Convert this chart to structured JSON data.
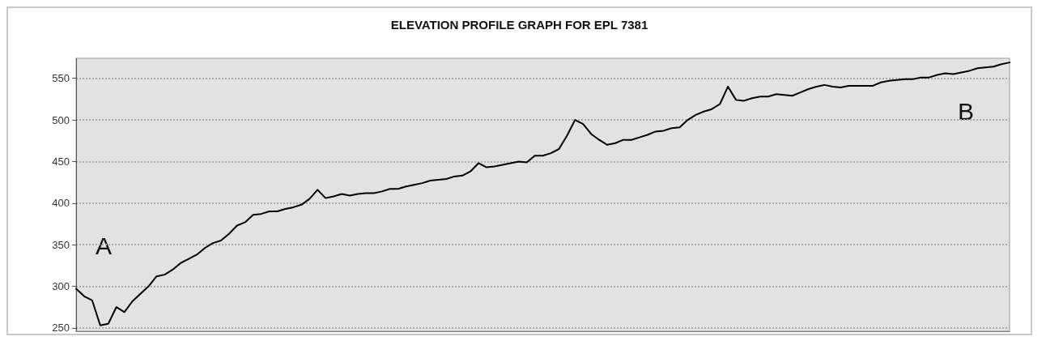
{
  "chart_data": {
    "type": "line",
    "title": "ELEVATION PROFILE GRAPH FOR EPL 7381",
    "categories": [
      null,
      null,
      null,
      null,
      null,
      null,
      null,
      null,
      null,
      null,
      null,
      null,
      null,
      null,
      null,
      null,
      null,
      null,
      null,
      null,
      null,
      null,
      null,
      null,
      null,
      null,
      null,
      null,
      null,
      null,
      null,
      null,
      null,
      null,
      null,
      null,
      null,
      null,
      null,
      null,
      null,
      null,
      null,
      null,
      null,
      null,
      null,
      null,
      null,
      null,
      null,
      null,
      null,
      null,
      null,
      null,
      null,
      null,
      null,
      null,
      null,
      null,
      null,
      null,
      null,
      null,
      null,
      null,
      null,
      null,
      null,
      null,
      null,
      null,
      null,
      null,
      null,
      null,
      null,
      null,
      null,
      null,
      null,
      null,
      null,
      null,
      null,
      null,
      null,
      null,
      null,
      null,
      null,
      null,
      null,
      null,
      null,
      null,
      null,
      null,
      null,
      null,
      null,
      null,
      null,
      null,
      null,
      null,
      null,
      null,
      null,
      null,
      null,
      null,
      null,
      null,
      null
    ],
    "values": [
      297,
      288,
      283,
      253,
      255,
      275,
      269,
      282,
      291,
      300,
      312,
      314,
      320,
      328,
      333,
      338,
      346,
      352,
      355,
      363,
      373,
      377,
      386,
      387,
      390,
      390,
      393,
      395,
      398,
      405,
      416,
      406,
      408,
      411,
      409,
      411,
      412,
      412,
      414,
      417,
      417,
      420,
      422,
      424,
      427,
      428,
      429,
      432,
      433,
      438,
      448,
      443,
      444,
      446,
      448,
      450,
      449,
      457,
      457,
      460,
      465,
      481,
      500,
      495,
      483,
      476,
      470,
      472,
      476,
      476,
      479,
      482,
      486,
      487,
      490,
      491,
      500,
      506,
      510,
      513,
      519,
      540,
      524,
      523,
      526,
      528,
      528,
      531,
      530,
      529,
      533,
      537,
      540,
      542,
      540,
      539,
      541,
      541,
      541,
      541,
      545,
      547,
      548,
      549,
      549,
      551,
      551,
      554,
      556,
      555,
      557,
      559,
      562,
      563,
      564,
      567,
      569
    ],
    "color": "#000000",
    "ylim": [
      246,
      574
    ],
    "yticks": [
      250,
      300,
      350,
      400,
      450,
      500,
      550
    ],
    "grid": "y",
    "marker": "none",
    "line_style": "solid",
    "tick_labels": "y",
    "annotations": [
      "A",
      "B"
    ]
  }
}
